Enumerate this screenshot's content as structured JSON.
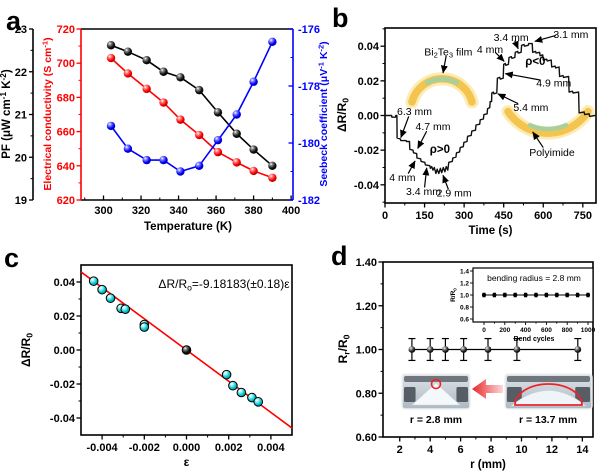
{
  "figure": {
    "background": "#ffffff",
    "panels": [
      {
        "id": "a",
        "letter": "a"
      },
      {
        "id": "b",
        "letter": "b"
      },
      {
        "id": "c",
        "letter": "c"
      },
      {
        "id": "d",
        "letter": "d"
      }
    ]
  },
  "chart_data": [
    {
      "id": "a",
      "type": "line",
      "xlabel": "Temperature (K)",
      "x_ticks": [
        300,
        320,
        340,
        360,
        380,
        400
      ],
      "xlim": [
        288,
        401
      ],
      "x": [
        304,
        313,
        323,
        332,
        341,
        351,
        361,
        371,
        380,
        390
      ],
      "axes": {
        "pf": {
          "label": "PF (μW cm^-1^ K^-2^)",
          "color": "#000000",
          "lim": [
            19,
            23
          ],
          "ticks": [
            19,
            20,
            21,
            22,
            23
          ]
        },
        "sigma": {
          "label": "Electrical conductivity (S cm^-1^)",
          "color": "#ff0000",
          "lim": [
            620,
            720
          ],
          "ticks": [
            620,
            640,
            660,
            680,
            700,
            720
          ]
        },
        "seebeck": {
          "label": "Seebeck coefficient (μV^-1^ K^-2^)",
          "color": "#0000ff",
          "lim": [
            -182,
            -176
          ],
          "ticks": [
            -176,
            -178,
            -180,
            -182
          ]
        }
      },
      "series": [
        {
          "name": "PF",
          "axis": "pf",
          "color": "#000000",
          "values": [
            22.62,
            22.47,
            22.27,
            22.0,
            21.87,
            21.57,
            21.05,
            20.55,
            20.18,
            19.8
          ]
        },
        {
          "name": "Electrical conductivity",
          "axis": "sigma",
          "color": "#ff0000",
          "values": [
            703,
            694,
            685,
            677,
            667,
            658,
            648,
            642,
            637,
            633
          ]
        },
        {
          "name": "Seebeck coefficient",
          "axis": "seebeck",
          "color": "#0000ff",
          "values": [
            -179.4,
            -180.2,
            -180.6,
            -180.6,
            -181.0,
            -180.8,
            -179.9,
            -179.0,
            -177.85,
            -176.45
          ]
        }
      ]
    },
    {
      "id": "b",
      "type": "line",
      "xlabel": "Time (s)",
      "ylabel": "ΔR/R~0~",
      "x_ticks": [
        0,
        150,
        300,
        450,
        600,
        750
      ],
      "y_ticks": [
        0.04,
        0.02,
        0,
        -0.02,
        -0.04
      ],
      "xlim": [
        0,
        800
      ],
      "ylim": [
        -0.0505,
        0.0505
      ],
      "film_label": "Bi~2~Te~3~ film",
      "substrate_label": "Polyimide",
      "curve": [
        [
          0,
          0
        ],
        [
          25,
          0
        ],
        [
          26,
          -0.001
        ],
        [
          40,
          -0.001
        ],
        [
          41,
          0
        ],
        [
          45,
          0
        ],
        [
          46,
          -0.013
        ],
        [
          58,
          -0.0135
        ],
        [
          60,
          -0.0145
        ],
        [
          80,
          -0.0145
        ],
        [
          82,
          -0.015
        ],
        [
          93,
          -0.015
        ],
        [
          94,
          -0.0195
        ],
        [
          106,
          -0.02
        ],
        [
          108,
          -0.0215
        ],
        [
          120,
          -0.022
        ],
        [
          121,
          -0.0245
        ],
        [
          135,
          -0.025
        ],
        [
          137,
          -0.0265
        ],
        [
          151,
          -0.027
        ],
        [
          153,
          -0.0285
        ],
        [
          170,
          -0.029
        ],
        [
          172,
          -0.0305
        ],
        [
          177,
          -0.0295
        ],
        [
          182,
          -0.0315
        ],
        [
          187,
          -0.03
        ],
        [
          193,
          -0.0335
        ],
        [
          198,
          -0.031
        ],
        [
          204,
          -0.0335
        ],
        [
          210,
          -0.0305
        ],
        [
          215,
          -0.033
        ],
        [
          221,
          -0.03
        ],
        [
          227,
          -0.0325
        ],
        [
          232,
          -0.0295
        ],
        [
          238,
          -0.0315
        ],
        [
          242,
          -0.027
        ],
        [
          255,
          -0.0265
        ],
        [
          257,
          -0.0245
        ],
        [
          269,
          -0.024
        ],
        [
          271,
          -0.0215
        ],
        [
          283,
          -0.021
        ],
        [
          285,
          -0.0185
        ],
        [
          297,
          -0.018
        ],
        [
          299,
          -0.0155
        ],
        [
          311,
          -0.015
        ],
        [
          313,
          -0.012
        ],
        [
          327,
          -0.0115
        ],
        [
          329,
          -0.009
        ],
        [
          343,
          -0.0085
        ],
        [
          345,
          -0.0055
        ],
        [
          359,
          -0.005
        ],
        [
          361,
          -0.0025
        ],
        [
          373,
          -0.002
        ],
        [
          375,
          0.0005
        ],
        [
          387,
          0.001
        ],
        [
          389,
          0.004
        ],
        [
          397,
          0.0045
        ],
        [
          399,
          0.008
        ],
        [
          404,
          0.008
        ],
        [
          405,
          0.013
        ],
        [
          411,
          0.0135
        ],
        [
          413,
          0.0125
        ],
        [
          424,
          0.013
        ],
        [
          426,
          0.0215
        ],
        [
          435,
          0.022
        ],
        [
          437,
          0.021
        ],
        [
          448,
          0.0215
        ],
        [
          450,
          0.0295
        ],
        [
          456,
          0.03
        ],
        [
          458,
          0.029
        ],
        [
          468,
          0.0295
        ],
        [
          470,
          0.0335
        ],
        [
          479,
          0.034
        ],
        [
          481,
          0.033
        ],
        [
          492,
          0.0335
        ],
        [
          494,
          0.0365
        ],
        [
          503,
          0.037
        ],
        [
          505,
          0.036
        ],
        [
          516,
          0.0365
        ],
        [
          518,
          0.0405
        ],
        [
          527,
          0.041
        ],
        [
          529,
          0.04
        ],
        [
          543,
          0.0405
        ],
        [
          545,
          0.0415
        ],
        [
          558,
          0.0415
        ],
        [
          560,
          0.0365
        ],
        [
          571,
          0.037
        ],
        [
          573,
          0.036
        ],
        [
          586,
          0.0365
        ],
        [
          588,
          0.0345
        ],
        [
          598,
          0.035
        ],
        [
          600,
          0.032
        ],
        [
          613,
          0.0325
        ],
        [
          615,
          0.0315
        ],
        [
          630,
          0.032
        ],
        [
          632,
          0.028
        ],
        [
          645,
          0.0285
        ],
        [
          647,
          0.0275
        ],
        [
          660,
          0.028
        ],
        [
          662,
          0.0225
        ],
        [
          675,
          0.023
        ],
        [
          677,
          0.022
        ],
        [
          696,
          0.0225
        ],
        [
          698,
          0.0135
        ],
        [
          711,
          0.014
        ],
        [
          713,
          0.013
        ],
        [
          734,
          0.0135
        ],
        [
          736,
          0.0015
        ],
        [
          755,
          0.002
        ],
        [
          757,
          0.0005
        ],
        [
          774,
          0.001
        ],
        [
          776,
          -0.0005
        ],
        [
          795,
          0
        ]
      ],
      "region_labels": [
        {
          "text": "ρ<0",
          "x": 570,
          "y": 0.0315
        },
        {
          "text": "ρ>0",
          "x": 208,
          "y": -0.0192
        }
      ],
      "annotations": [
        {
          "text": "3.4 mm",
          "tx": 478,
          "ty": 0.0452,
          "sx": 492,
          "sy": 0.0432,
          "ax": 505,
          "ay": 0.0385
        },
        {
          "text": "3.1 mm",
          "tx": 705,
          "ty": 0.047,
          "sx": 648,
          "sy": 0.0462,
          "ax": 568,
          "ay": 0.0428
        },
        {
          "text": "4 mm",
          "tx": 398,
          "ty": 0.0385,
          "sx": 418,
          "sy": 0.0365,
          "ax": 452,
          "ay": 0.0312
        },
        {
          "text": "4.9 mm",
          "tx": 640,
          "ty": 0.019,
          "sx": 588,
          "sy": 0.0205,
          "ax": 456,
          "ay": 0.0242
        },
        {
          "text": "5.4 mm",
          "tx": 553,
          "ty": 0.005,
          "sx": 505,
          "sy": 0.0068,
          "ax": 428,
          "ay": 0.0125
        },
        {
          "text": "6.3 mm",
          "tx": 112,
          "ty": 0.0025,
          "sx": 90,
          "sy": -0.0005,
          "ax": 60,
          "ay": -0.0128
        },
        {
          "text": "4.7 mm",
          "tx": 182,
          "ty": -0.006,
          "sx": 158,
          "sy": -0.009,
          "ax": 124,
          "ay": -0.019
        },
        {
          "text": "4 mm",
          "tx": 66,
          "ty": -0.0355,
          "sx": 88,
          "sy": -0.0335,
          "ax": 114,
          "ay": -0.0262
        },
        {
          "text": "3.4 mm",
          "tx": 146,
          "ty": -0.0435,
          "sx": 150,
          "sy": -0.0415,
          "ax": 158,
          "ay": -0.0302
        },
        {
          "text": "2.9 mm",
          "tx": 262,
          "ty": -0.0445,
          "sx": 240,
          "sy": -0.0425,
          "ax": 220,
          "ay": -0.0345
        },
        {
          "text": "Bi~2~Te~3~ film",
          "tx": 240,
          "ty": 0.037,
          "sx": 232,
          "sy": 0.0345,
          "ax": 220,
          "ay": 0.0245
        },
        {
          "text": "Polyimide",
          "tx": 633,
          "ty": -0.021,
          "sx": 600,
          "sy": -0.0185,
          "ax": 560,
          "ay": -0.0095
        }
      ]
    },
    {
      "id": "c",
      "type": "scatter",
      "xlabel": "ε",
      "ylabel": "ΔR/R~0~",
      "equation": "ΔR/R~o~=-9.18183(±0.18)ε",
      "x_ticks": [
        -0.004,
        -0.002,
        0,
        0.002,
        0.004
      ],
      "y_ticks": [
        0.04,
        0.02,
        0,
        -0.02,
        -0.04
      ],
      "xlim": [
        -0.005,
        0.005
      ],
      "ylim": [
        -0.05,
        0.05
      ],
      "fit": {
        "slope": -9.18183,
        "color": "#ff0000"
      },
      "point_color": "#00c8d0",
      "points": [
        [
          -0.0044,
          0.0405
        ],
        [
          -0.004,
          0.0355
        ],
        [
          -0.0036,
          0.0305
        ],
        [
          -0.0031,
          0.0245
        ],
        [
          -0.0029,
          0.024
        ],
        [
          -0.002,
          0.015
        ],
        [
          -0.002,
          0.0135
        ],
        [
          0,
          0
        ],
        [
          0.0019,
          -0.0145
        ],
        [
          0.0022,
          -0.021
        ],
        [
          0.0026,
          -0.025
        ],
        [
          0.0031,
          -0.028
        ],
        [
          0.0034,
          -0.0305
        ]
      ]
    },
    {
      "id": "d",
      "type": "errorbar",
      "xlabel": "r (mm)",
      "ylabel": "R~r~/R~0~",
      "x_ticks": [
        2,
        4,
        6,
        8,
        10,
        12,
        14
      ],
      "y_ticks": [
        0.6,
        0.8,
        1.0,
        1.2,
        1.4
      ],
      "xlim": [
        0.9,
        14.7
      ],
      "ylim": [
        0.6,
        1.4
      ],
      "r": [
        2.8,
        4.0,
        5.0,
        6.2,
        7.8,
        9.7,
        13.7
      ],
      "values": [
        1.0,
        1.0,
        1.0,
        1.0,
        1.0,
        1.0,
        1.0
      ],
      "yerr": 0.05,
      "inset": {
        "title": "bending radius = 2.8 mm",
        "xlabel": "Bend cycles",
        "ylabel": "R/R~0~",
        "x_ticks": [
          0,
          200,
          400,
          600,
          800,
          1000
        ],
        "y_ticks": [
          1.4,
          1.2,
          1.0,
          0.8,
          0.6
        ],
        "cycles": [
          0,
          100,
          200,
          300,
          400,
          500,
          600,
          700,
          800,
          900,
          1000
        ],
        "values": [
          1,
          1,
          1,
          1,
          1,
          1,
          1,
          1,
          1,
          1,
          1
        ],
        "yerr": 0.03
      },
      "photos": [
        {
          "caption": "r = 2.8 mm",
          "marker": "red-circle"
        },
        {
          "caption": "r = 13.7 mm",
          "marker": "red-arc"
        }
      ],
      "arrow_color": "#e8262a"
    }
  ]
}
